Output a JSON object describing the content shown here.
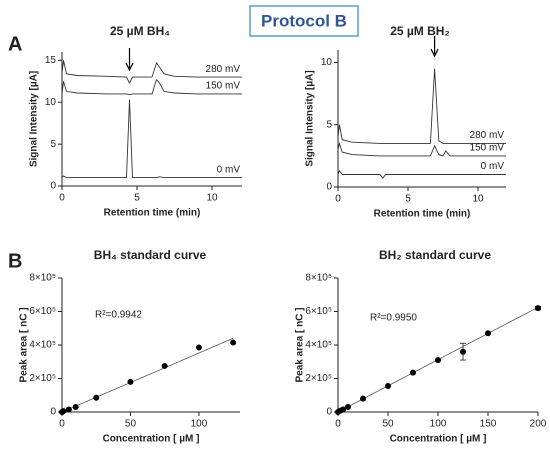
{
  "figure_title": "Protocol B",
  "panel_labels": [
    "A",
    "B"
  ],
  "chart_data": [
    {
      "type": "line",
      "title": "25 µM BH₄",
      "xlabel": "Retention time (min)",
      "ylabel": "Signal Intensity [µA]",
      "xlim": [
        0,
        12
      ],
      "ylim": [
        0,
        16
      ],
      "xticks": [
        0,
        5,
        10
      ],
      "yticks": [
        0,
        5,
        10,
        15
      ],
      "x": [
        0,
        0.1,
        0.3,
        1,
        3,
        4.3,
        4.5,
        4.7,
        6,
        6.3,
        6.5,
        6.8,
        7.5,
        9,
        12
      ],
      "series": [
        {
          "name": "280 mV",
          "color": "#333333",
          "values": [
            13.5,
            15,
            13.4,
            13.2,
            13.1,
            13.0,
            12.3,
            13.0,
            13.0,
            14.7,
            14.2,
            13.4,
            13.1,
            13.0,
            13.0
          ]
        },
        {
          "name": "150 mV",
          "color": "#333333",
          "values": [
            11,
            12.5,
            11.3,
            11.1,
            11.0,
            11.0,
            10.9,
            11.0,
            11.0,
            12.7,
            12.3,
            11.3,
            11.1,
            11.0,
            11.0
          ]
        },
        {
          "name": "0 mV",
          "color": "#333333",
          "values": [
            1,
            1.2,
            1.0,
            1.0,
            1.0,
            1.0,
            10.3,
            1.0,
            1.0,
            1.0,
            1.1,
            1.0,
            1.0,
            1.0,
            1.0
          ]
        }
      ]
    },
    {
      "type": "line",
      "title": "25 µM BH₂",
      "xlabel": "Retention time (min)",
      "ylabel": "Signal Intensity [µA]",
      "xlim": [
        0,
        12
      ],
      "ylim": [
        0,
        11
      ],
      "xticks": [
        0,
        5,
        10
      ],
      "yticks": [
        0,
        5,
        10
      ],
      "x": [
        0,
        0.1,
        0.3,
        1,
        3,
        3.2,
        3.4,
        6.6,
        6.9,
        7.2,
        7.5,
        7.7,
        8,
        12
      ],
      "series": [
        {
          "name": "280 mV",
          "color": "#333333",
          "values": [
            4,
            5,
            3.8,
            3.6,
            3.5,
            3.5,
            3.5,
            3.5,
            9.5,
            3.7,
            3.5,
            3.5,
            3.5,
            3.5
          ]
        },
        {
          "name": "150 mV",
          "color": "#333333",
          "values": [
            3,
            3.5,
            2.8,
            2.6,
            2.5,
            2.5,
            2.5,
            2.5,
            3.3,
            2.6,
            2.5,
            2.9,
            2.5,
            2.5
          ]
        },
        {
          "name": "0 mV",
          "color": "#333333",
          "values": [
            1.0,
            1.3,
            1.0,
            1.0,
            1.0,
            0.7,
            1.0,
            1.0,
            1.0,
            1.0,
            1.0,
            1.0,
            1.0,
            1.0
          ]
        }
      ]
    },
    {
      "type": "scatter",
      "title": "BH₄ standard curve",
      "xlabel": "Concentration [ µM ]",
      "ylabel": "Peak area [ nC ]",
      "annotation": "R²=0.9942",
      "xlim": [
        0,
        130
      ],
      "ylim": [
        0,
        800000
      ],
      "xticks": [
        0,
        50,
        100
      ],
      "yticks": [
        0,
        {
          "value": 200000,
          "label": "2×10⁵"
        },
        {
          "value": 400000,
          "label": "4×10⁵"
        },
        {
          "value": 600000,
          "label": "6×10⁵"
        },
        {
          "value": 800000,
          "label": "8×10⁵"
        }
      ],
      "points": {
        "color": "#000000",
        "x": [
          0,
          1,
          5,
          10,
          25,
          50,
          75,
          100,
          125
        ],
        "values": [
          0,
          5000,
          15000,
          30000,
          85000,
          180000,
          275000,
          385000,
          415000
        ]
      },
      "fit": {
        "color": "#555555",
        "x": [
          0,
          125
        ],
        "values": [
          0,
          440000
        ]
      }
    },
    {
      "type": "scatter",
      "title": "BH₂ standard curve",
      "xlabel": "Concentration [ µM ]",
      "ylabel": "Peak area [ nC ]",
      "annotation": "R²=0.9950",
      "xlim": [
        0,
        200
      ],
      "ylim": [
        0,
        800000
      ],
      "xticks": [
        0,
        50,
        100,
        150,
        200
      ],
      "yticks": [
        0,
        {
          "value": 200000,
          "label": "2×10⁵"
        },
        {
          "value": 400000,
          "label": "4×10⁵"
        },
        {
          "value": 600000,
          "label": "6×10⁵"
        },
        {
          "value": 800000,
          "label": "8×10⁵"
        }
      ],
      "points": {
        "color": "#000000",
        "x": [
          0,
          2.5,
          5,
          10,
          25,
          50,
          75,
          100,
          125,
          150,
          200
        ],
        "values": [
          0,
          8000,
          15000,
          30000,
          80000,
          155000,
          235000,
          310000,
          360000,
          470000,
          620000
        ],
        "errors": [
          null,
          null,
          null,
          null,
          null,
          null,
          null,
          null,
          50000,
          null,
          10000
        ]
      },
      "fit": {
        "color": "#555555",
        "x": [
          0,
          200
        ],
        "values": [
          0,
          625000
        ]
      }
    }
  ]
}
